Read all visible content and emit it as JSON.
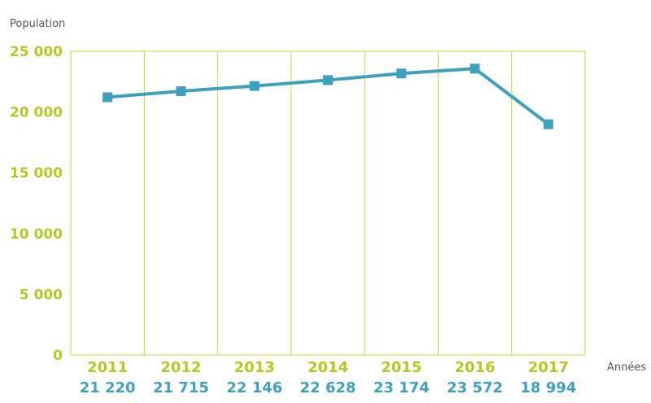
{
  "chart_data": {
    "type": "line",
    "categories": [
      "2011",
      "2012",
      "2013",
      "2014",
      "2015",
      "2016",
      "2017"
    ],
    "series": [
      {
        "values": [
          21220,
          21715,
          22146,
          22628,
          23174,
          23572,
          18994
        ]
      }
    ],
    "data_labels": [
      "21 220",
      "21 715",
      "22 146",
      "22 628",
      "23 174",
      "23 572",
      "18 994"
    ],
    "ylabel": "Population",
    "xlabel": "Années",
    "ylim": [
      0,
      25000
    ],
    "yticks": [
      0,
      5000,
      10000,
      15000,
      20000,
      25000
    ],
    "ytick_labels": [
      "0",
      "5 000",
      "10 000",
      "15 000",
      "20 000",
      "25 000"
    ],
    "grid": "vertical",
    "colors": {
      "line": "#3da1bd",
      "marker": "#3da1bd",
      "grid": "#c5d82a",
      "tick_labels": "#b5c81f",
      "data_labels": "#3da1bd",
      "axis_titles": "#555555"
    }
  }
}
